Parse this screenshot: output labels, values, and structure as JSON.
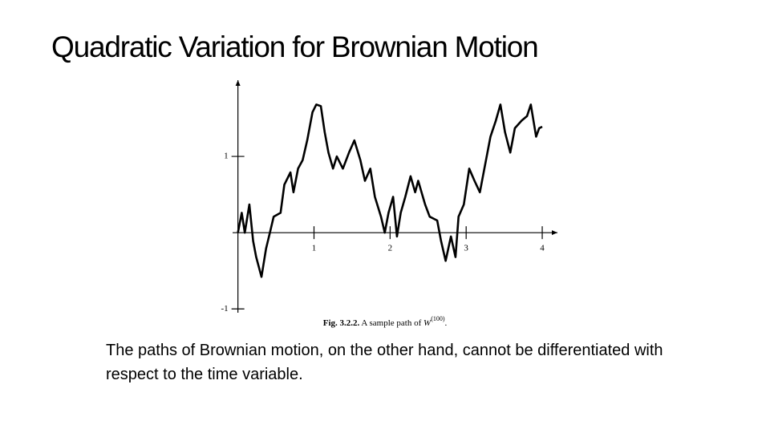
{
  "title": "Quadratic Variation for Brownian Motion",
  "body": "The paths of Brownian motion, on the other hand, cannot be differentiated with respect to the time variable.",
  "chart_data": {
    "type": "line",
    "caption": {
      "label": "Fig. 3.2.2.",
      "text": "A sample path of",
      "symbol": "W",
      "superscript": "(100)",
      "end": "."
    },
    "x": [
      0,
      0.05,
      0.09,
      0.15,
      0.2,
      0.24,
      0.31,
      0.37,
      0.42,
      0.47,
      0.56,
      0.61,
      0.69,
      0.73,
      0.79,
      0.85,
      0.91,
      0.98,
      1.03,
      1.09,
      1.14,
      1.19,
      1.25,
      1.3,
      1.38,
      1.46,
      1.53,
      1.61,
      1.67,
      1.74,
      1.8,
      1.88,
      1.93,
      1.98,
      2.04,
      2.09,
      2.14,
      2.2,
      2.27,
      2.33,
      2.37,
      2.46,
      2.52,
      2.62,
      2.67,
      2.73,
      2.8,
      2.86,
      2.9,
      2.97,
      3.04,
      3.11,
      3.18,
      3.24,
      3.32,
      3.39,
      3.45,
      3.51,
      3.58,
      3.64,
      3.73,
      3.8,
      3.85,
      3.92,
      3.96,
      4.0
    ],
    "series": [
      {
        "color": "#000000",
        "values": [
          0,
          0.26,
          0,
          0.37,
          -0.11,
          -0.32,
          -0.58,
          -0.21,
          0,
          0.21,
          0.26,
          0.63,
          0.79,
          0.53,
          0.84,
          0.95,
          1.21,
          1.58,
          1.68,
          1.66,
          1.32,
          1.05,
          0.84,
          1.0,
          0.84,
          1.05,
          1.21,
          0.95,
          0.68,
          0.84,
          0.47,
          0.21,
          0,
          0.26,
          0.47,
          -0.05,
          0.26,
          0.47,
          0.74,
          0.53,
          0.68,
          0.37,
          0.21,
          0.16,
          -0.11,
          -0.37,
          -0.05,
          -0.32,
          0.21,
          0.37,
          0.84,
          0.68,
          0.53,
          0.84,
          1.26,
          1.47,
          1.68,
          1.32,
          1.05,
          1.37,
          1.47,
          1.53,
          1.68,
          1.26,
          1.37,
          1.39
        ]
      }
    ],
    "xlim": [
      -0.07,
      4.2
    ],
    "ylim": [
      -1.05,
      2.0
    ],
    "xticks": [
      1,
      2,
      3,
      4
    ],
    "yticks": [
      -1,
      1
    ]
  }
}
